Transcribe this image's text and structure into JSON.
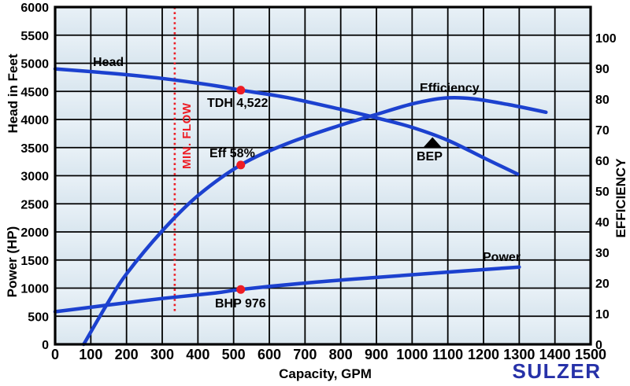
{
  "colors": {
    "curve_blue": "#1c41cf",
    "marker_red": "#ed1c24",
    "grid_black": "#000000",
    "plot_fill_light": "#e9f1f7",
    "plot_fill_dark": "#d9e6ef",
    "logo_blue": "#2631a8"
  },
  "branding": {
    "logo": "SULZER"
  },
  "chart_data": {
    "type": "line",
    "grid": "on",
    "x": {
      "label": "Capacity, GPM",
      "min": 0,
      "max": 1500,
      "grid_step": 100,
      "ticks": [
        "0",
        "100",
        "200",
        "300",
        "400",
        "500",
        "600",
        "700",
        "800",
        "900",
        "1000",
        "1100",
        "1200",
        "1300",
        "1400",
        "1500"
      ]
    },
    "y_left": {
      "labels": [
        "Head in Feet",
        "Power (HP)"
      ],
      "min": 0,
      "max": 6000,
      "grid_step": 500,
      "ticks": [
        "6000",
        "5500",
        "5000",
        "4500",
        "4000",
        "3500",
        "3000",
        "2500",
        "2000",
        "1500",
        "1000",
        "500",
        "0"
      ]
    },
    "y_right": {
      "label": "EFFICIENCY",
      "min": 0,
      "max": 110,
      "ticks": [
        "100",
        "90",
        "80",
        "70",
        "60",
        "50",
        "40",
        "30",
        "20",
        "10",
        "0"
      ]
    },
    "series": [
      {
        "name": "head",
        "label": "Head",
        "axis": "left",
        "color": "#1c41cf",
        "points": [
          [
            0,
            4900
          ],
          [
            150,
            4825
          ],
          [
            300,
            4730
          ],
          [
            450,
            4600
          ],
          [
            520,
            4522
          ],
          [
            650,
            4390
          ],
          [
            800,
            4180
          ],
          [
            900,
            4030
          ],
          [
            1000,
            3860
          ],
          [
            1100,
            3630
          ],
          [
            1200,
            3320
          ],
          [
            1295,
            3030
          ]
        ]
      },
      {
        "name": "efficiency",
        "label": "Efficiency",
        "axis": "right",
        "color": "#1c41cf",
        "points": [
          [
            80,
            0
          ],
          [
            150,
            14
          ],
          [
            200,
            23
          ],
          [
            300,
            37
          ],
          [
            400,
            48.5
          ],
          [
            520,
            58.5
          ],
          [
            650,
            65.5
          ],
          [
            800,
            71.5
          ],
          [
            900,
            75
          ],
          [
            1000,
            78.4
          ],
          [
            1090,
            80.3
          ],
          [
            1170,
            80.1
          ],
          [
            1270,
            78.2
          ],
          [
            1375,
            75.7
          ]
        ]
      },
      {
        "name": "power",
        "label": "Power",
        "axis": "left",
        "color": "#1c41cf",
        "points": [
          [
            0,
            580
          ],
          [
            150,
            700
          ],
          [
            300,
            815
          ],
          [
            450,
            915
          ],
          [
            520,
            976
          ],
          [
            700,
            1090
          ],
          [
            900,
            1190
          ],
          [
            1100,
            1285
          ],
          [
            1300,
            1375
          ]
        ]
      }
    ],
    "markers": [
      {
        "name": "tdh-point",
        "shape": "dot",
        "label": "TDH 4,522",
        "gpm": 520,
        "value": 4522,
        "axis": "left",
        "color": "#ed1c24"
      },
      {
        "name": "eff-point",
        "shape": "dot",
        "label": "Eff 58%",
        "gpm": 520,
        "value": 58.5,
        "axis": "right",
        "color": "#ed1c24"
      },
      {
        "name": "bhp-point",
        "shape": "dot",
        "label": "BHP 976",
        "gpm": 520,
        "value": 976,
        "axis": "left",
        "color": "#ed1c24"
      },
      {
        "name": "bep-point",
        "shape": "triangle",
        "label": "BEP",
        "gpm": 1057,
        "value": 3580,
        "axis": "left",
        "color": "#000000"
      }
    ],
    "min_flow_line": {
      "label": "MIN. FLOW",
      "gpm": 335,
      "color": "#ed1c24",
      "style": "dotted"
    }
  }
}
